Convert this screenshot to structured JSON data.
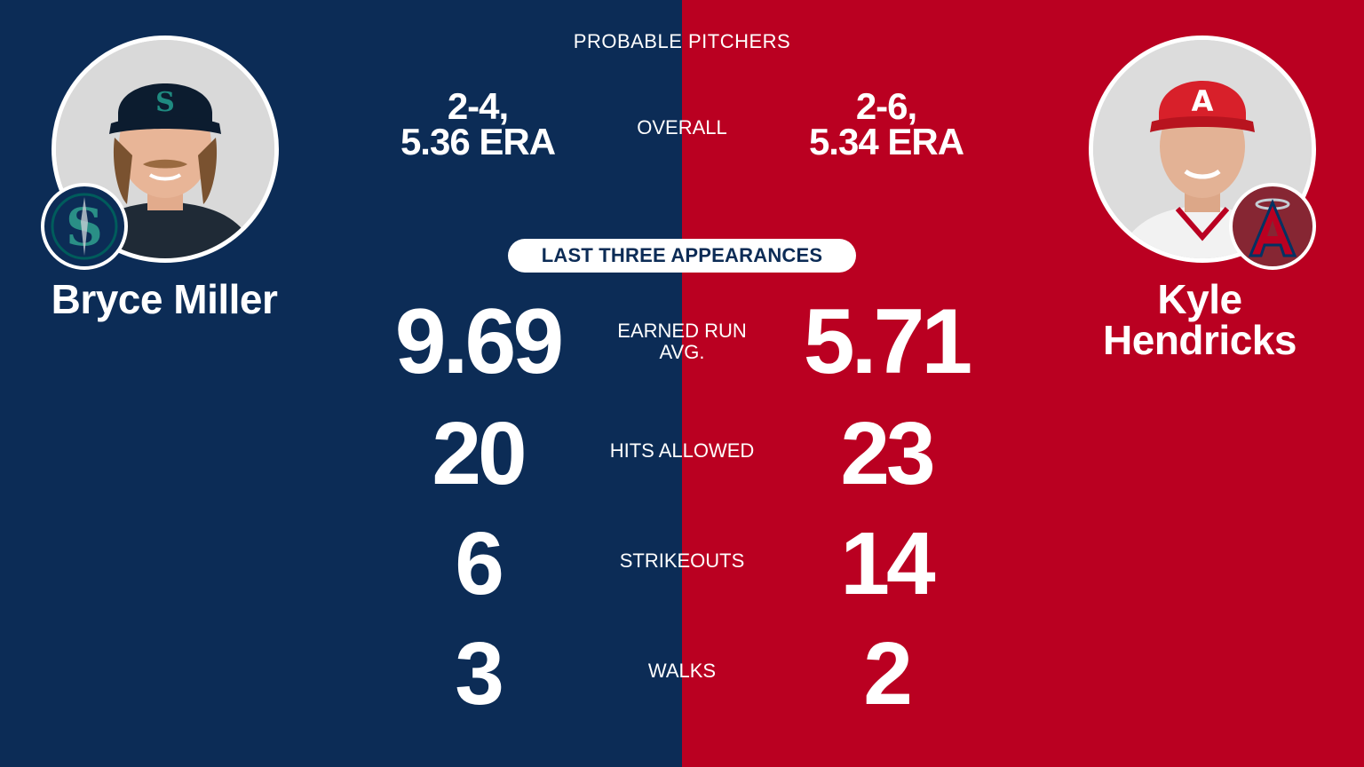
{
  "colors": {
    "left_bg": "#0c2c56",
    "right_bg": "#ba0021",
    "teal": "#005c5c",
    "angels_red": "#ba0021",
    "navy": "#0c2c56"
  },
  "header": {
    "title": "PROBABLE PITCHERS"
  },
  "overall_label": "OVERALL",
  "section_label": "LAST THREE APPEARANCES",
  "left": {
    "name": "Bryce Miller",
    "record_line1": "2-4,",
    "record_line2": "5.36 ERA",
    "era": "9.69",
    "hits": "20",
    "strikeouts": "6",
    "walks": "3",
    "logo_icon": "mariners-s-logo"
  },
  "right": {
    "name_line1": "Kyle",
    "name_line2": "Hendricks",
    "record_line1": "2-6,",
    "record_line2": "5.34 ERA",
    "era": "5.71",
    "hits": "23",
    "strikeouts": "14",
    "walks": "2",
    "logo_icon": "angels-a-logo"
  },
  "stat_labels": {
    "era_line1": "EARNED RUN",
    "era_line2": "AVG.",
    "hits": "HITS ALLOWED",
    "strikeouts": "STRIKEOUTS",
    "walks": "WALKS"
  }
}
